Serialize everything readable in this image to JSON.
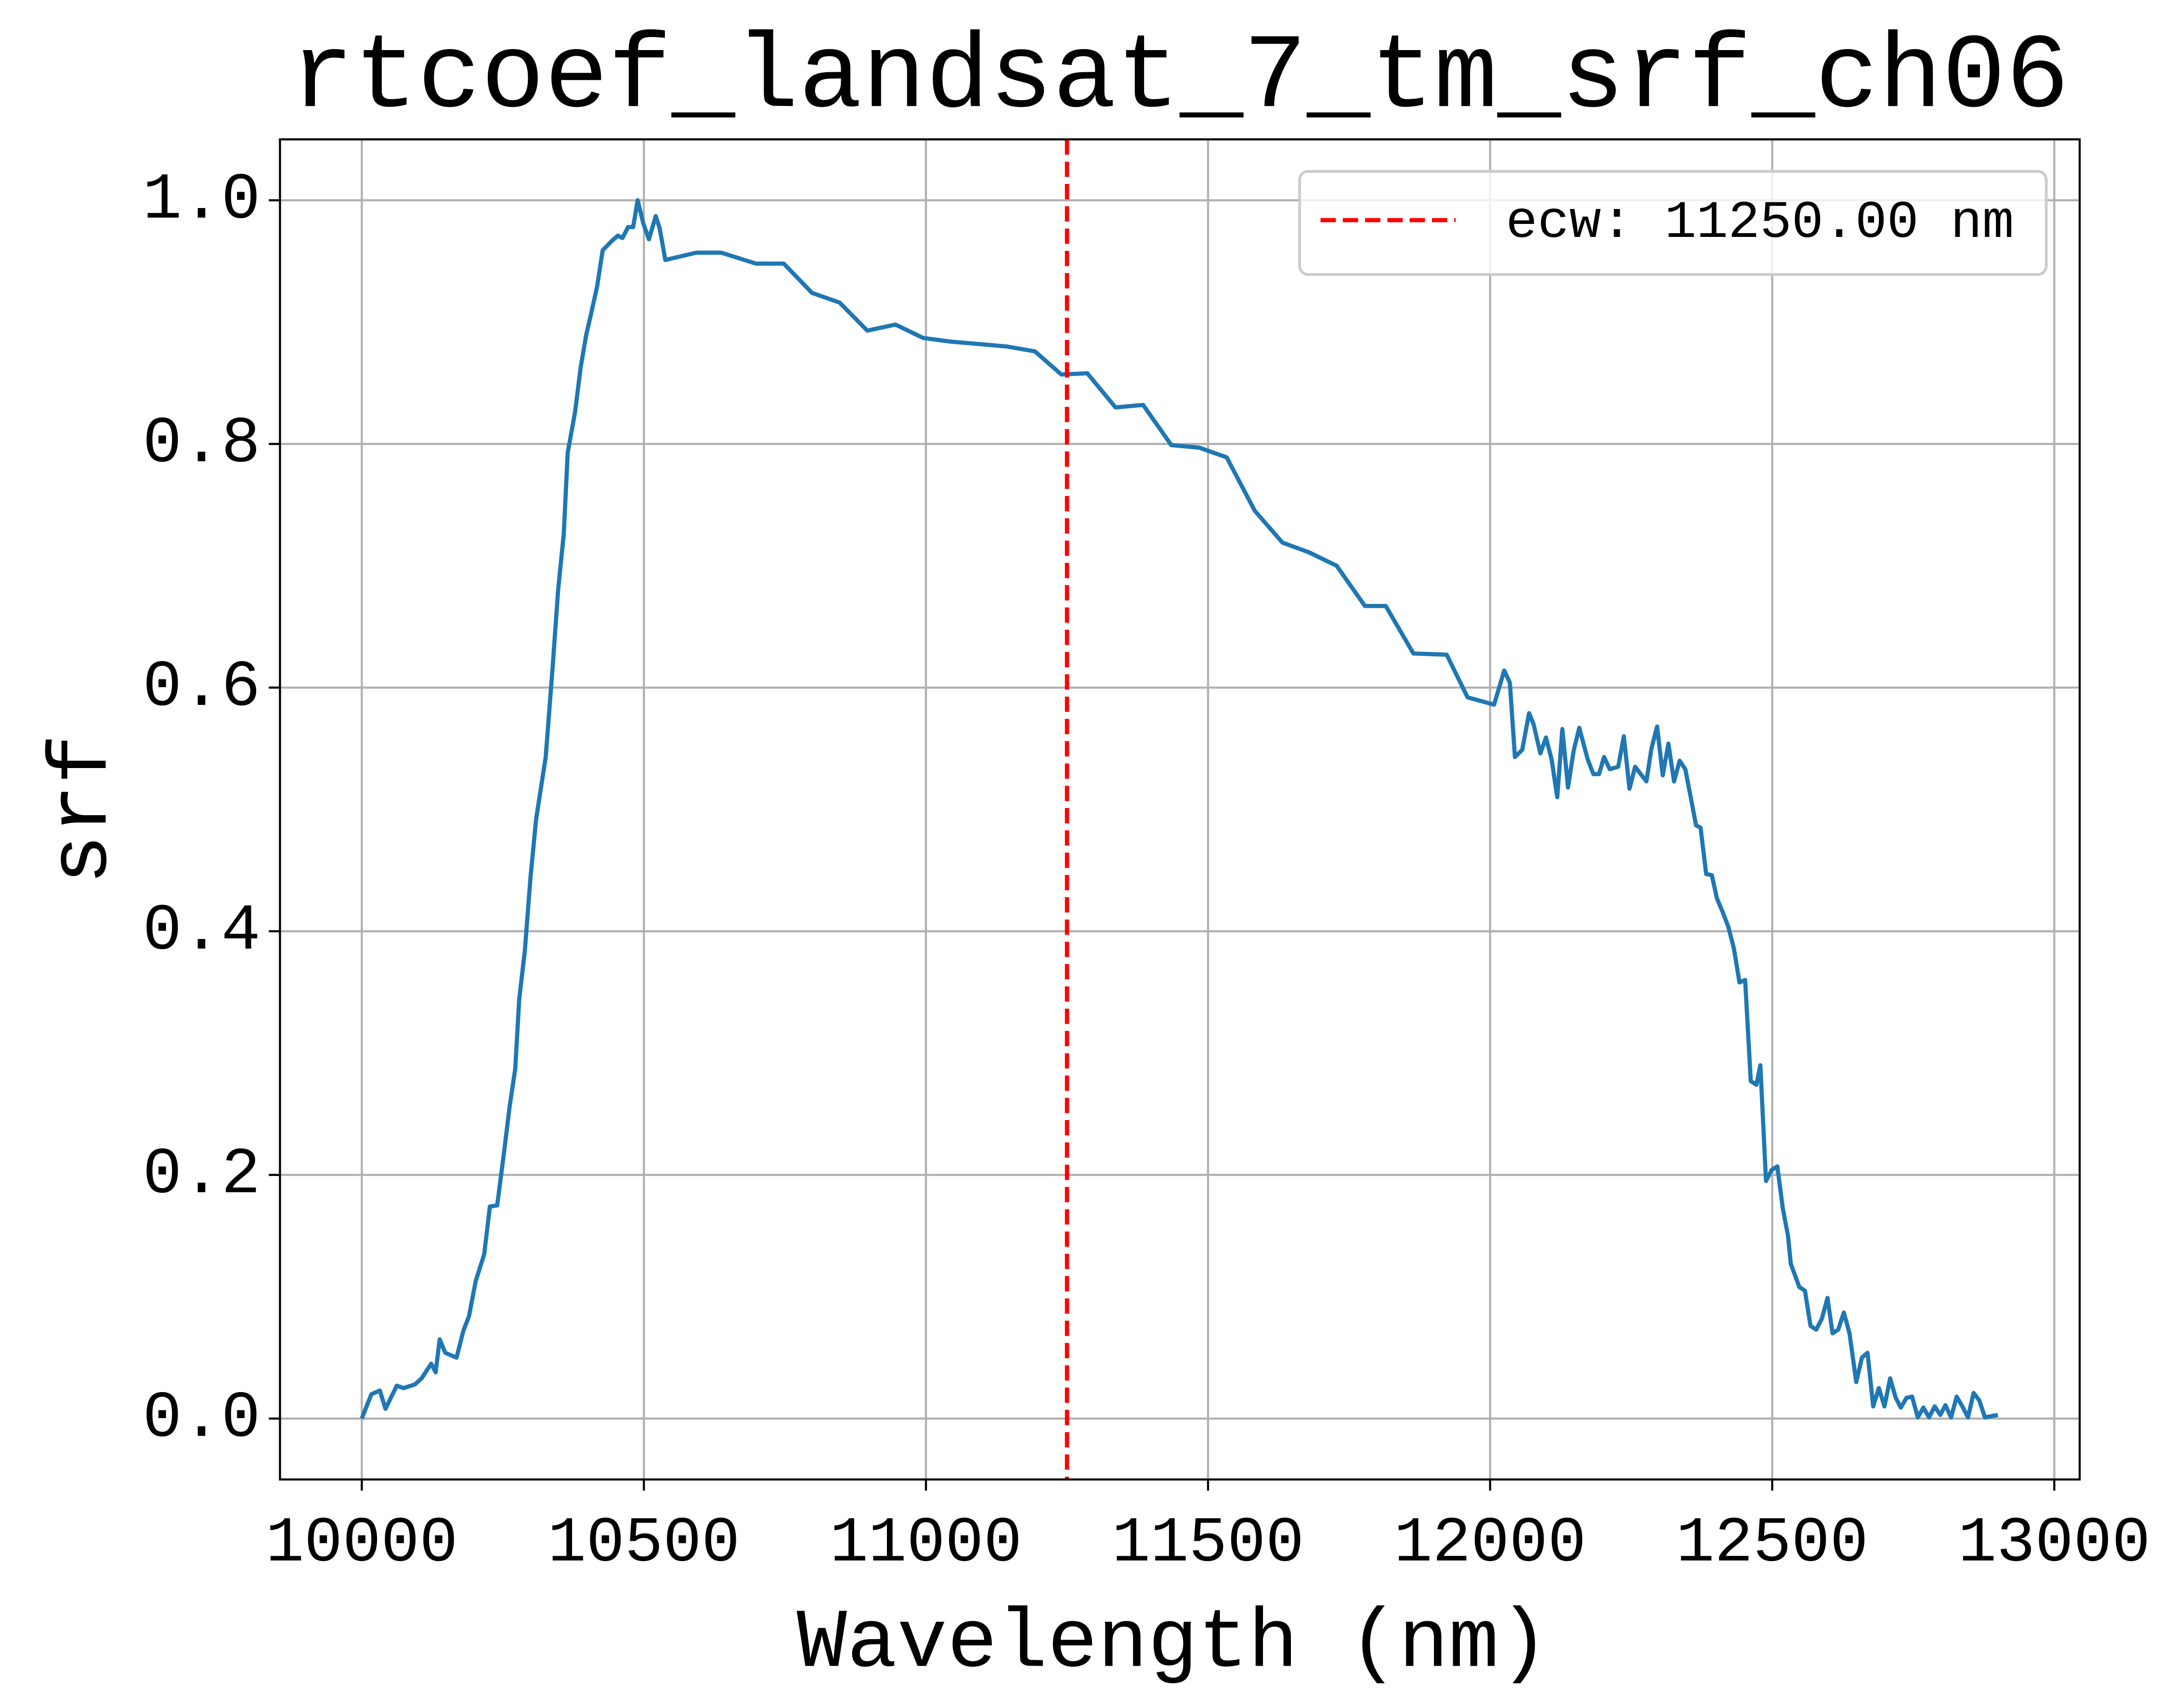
{
  "chart_data": {
    "type": "line",
    "title": "rtcoef_landsat_7_tm_srf_ch06",
    "x_label": "Wavelength (nm)",
    "y_label": "srf",
    "x": [
      10000,
      10017,
      10032,
      10042,
      10062,
      10074,
      10094,
      10106,
      10123,
      10131,
      10138,
      10148,
      10168,
      10180,
      10190,
      10202,
      10217,
      10227,
      10240,
      10252,
      10262,
      10272,
      10279,
      10289,
      10299,
      10309,
      10326,
      10338,
      10348,
      10358,
      10365,
      10378,
      10388,
      10398,
      10407,
      10417,
      10427,
      10444,
      10454,
      10462,
      10472,
      10481,
      10489,
      10499,
      10509,
      10521,
      10528,
      10538,
      10593,
      10637,
      10699,
      10748,
      10798,
      10847,
      10896,
      10946,
      10995,
      11044,
      11094,
      11143,
      11193,
      11240,
      11286,
      11336,
      11385,
      11435,
      11484,
      11533,
      11583,
      11632,
      11679,
      11728,
      11778,
      11815,
      11864,
      11923,
      11960,
      12007,
      12025,
      12035,
      12044,
      12057,
      12069,
      12077,
      12089,
      12099,
      12109,
      12119,
      12128,
      12138,
      12148,
      12158,
      12173,
      12183,
      12193,
      12202,
      12212,
      12227,
      12237,
      12247,
      12257,
      12267,
      12277,
      12286,
      12296,
      12306,
      12316,
      12326,
      12336,
      12346,
      12356,
      12365,
      12373,
      12383,
      12393,
      12402,
      12412,
      12422,
      12432,
      12442,
      12452,
      12462,
      12472,
      12479,
      12489,
      12499,
      12509,
      12519,
      12528,
      12533,
      12548,
      12558,
      12568,
      12578,
      12588,
      12598,
      12607,
      12617,
      12627,
      12637,
      12649,
      12659,
      12669,
      12679,
      12689,
      12699,
      12709,
      12719,
      12728,
      12738,
      12748,
      12758,
      12768,
      12778,
      12788,
      12798,
      12807,
      12817,
      12827,
      12837,
      12847,
      12857,
      12867,
      12877,
      12900
    ],
    "series": [
      {
        "name": "srf",
        "color": "#1f77b4",
        "values": [
          0.0,
          0.02,
          0.023,
          0.008,
          0.027,
          0.025,
          0.028,
          0.033,
          0.045,
          0.038,
          0.065,
          0.054,
          0.05,
          0.072,
          0.084,
          0.113,
          0.135,
          0.174,
          0.175,
          0.218,
          0.256,
          0.287,
          0.344,
          0.384,
          0.444,
          0.492,
          0.543,
          0.615,
          0.68,
          0.726,
          0.793,
          0.826,
          0.863,
          0.89,
          0.908,
          0.929,
          0.959,
          0.967,
          0.971,
          0.969,
          0.978,
          0.978,
          1.0,
          0.981,
          0.968,
          0.987,
          0.977,
          0.951,
          0.957,
          0.957,
          0.948,
          0.948,
          0.924,
          0.916,
          0.893,
          0.898,
          0.887,
          0.884,
          0.882,
          0.88,
          0.876,
          0.857,
          0.858,
          0.83,
          0.832,
          0.799,
          0.797,
          0.789,
          0.745,
          0.719,
          0.711,
          0.7,
          0.667,
          0.667,
          0.628,
          0.627,
          0.592,
          0.586,
          0.614,
          0.604,
          0.543,
          0.549,
          0.579,
          0.57,
          0.546,
          0.559,
          0.541,
          0.51,
          0.566,
          0.518,
          0.548,
          0.567,
          0.541,
          0.529,
          0.529,
          0.543,
          0.533,
          0.535,
          0.56,
          0.517,
          0.535,
          0.529,
          0.523,
          0.55,
          0.568,
          0.528,
          0.554,
          0.523,
          0.54,
          0.533,
          0.509,
          0.487,
          0.485,
          0.447,
          0.446,
          0.427,
          0.416,
          0.404,
          0.386,
          0.358,
          0.36,
          0.277,
          0.274,
          0.29,
          0.195,
          0.204,
          0.207,
          0.172,
          0.15,
          0.127,
          0.108,
          0.105,
          0.076,
          0.073,
          0.082,
          0.099,
          0.07,
          0.073,
          0.087,
          0.07,
          0.03,
          0.05,
          0.054,
          0.01,
          0.025,
          0.01,
          0.033,
          0.017,
          0.009,
          0.017,
          0.018,
          0.001,
          0.009,
          0.001,
          0.01,
          0.003,
          0.011,
          0.001,
          0.018,
          0.01,
          0.001,
          0.021,
          0.015,
          0.001,
          0.003
        ]
      }
    ],
    "reference_lines": [
      {
        "x": 11250,
        "color": "#ff0000",
        "name": "ecw: 11250.00 nm"
      }
    ],
    "xlim": [
      9855,
      13045
    ],
    "ylim": [
      -0.05,
      1.05
    ],
    "xticks": [
      10000,
      10500,
      11000,
      11500,
      12000,
      12500,
      13000
    ],
    "yticks": [
      {
        "value": 0,
        "label": "0.0"
      },
      0.2,
      0.4,
      0.6,
      0.8,
      {
        "value": 1,
        "label": "1.0"
      }
    ],
    "grid": true,
    "legend": "upper right"
  }
}
